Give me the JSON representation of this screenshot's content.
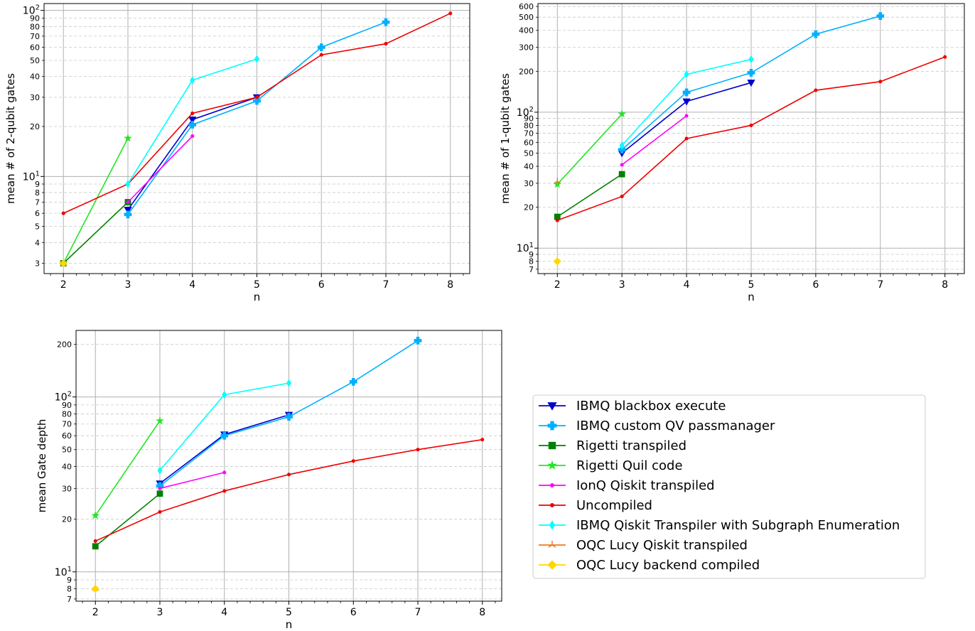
{
  "legend": {
    "entries": [
      {
        "name": "IBMQ blackbox execute",
        "color": "#0000cc",
        "marker": "tri-down"
      },
      {
        "name": "IBMQ custom QV passmanager",
        "color": "#00b0ff",
        "marker": "plus-filled"
      },
      {
        "name": "Rigetti transpiled",
        "color": "#008000",
        "marker": "square"
      },
      {
        "name": "Rigetti Quil code",
        "color": "#22e622",
        "marker": "star"
      },
      {
        "name": "IonQ Qiskit transpiled",
        "color": "#ff00ff",
        "marker": "dot"
      },
      {
        "name": "Uncompiled",
        "color": "#ee0000",
        "marker": "dot"
      },
      {
        "name": "IBMQ Qiskit Transpiler with Subgraph Enumeration",
        "color": "#00ffff",
        "marker": "thin-diamond"
      },
      {
        "name": "OQC Lucy Qiskit transpiled",
        "color": "#e87b1e",
        "marker": "tri-y"
      },
      {
        "name": "OQC Lucy backend compiled",
        "color": "#ffd700",
        "marker": "diamond"
      }
    ]
  },
  "chart_data": [
    {
      "type": "line",
      "xlabel": "n",
      "ylabel": "mean # of 2-qubit gates",
      "yscale": "log",
      "xlim": [
        1.7,
        8.3
      ],
      "ylim": [
        2.6,
        110
      ],
      "xticks": [
        2,
        3,
        4,
        5,
        6,
        7,
        8
      ],
      "grid": true,
      "series": [
        {
          "name": "IBMQ blackbox execute",
          "x": [
            3,
            4,
            5
          ],
          "y": [
            6.3,
            22,
            30
          ]
        },
        {
          "name": "IBMQ custom QV passmanager",
          "x": [
            3,
            4,
            5,
            6,
            7
          ],
          "y": [
            5.9,
            20.5,
            28.5,
            60,
            85
          ]
        },
        {
          "name": "Rigetti transpiled",
          "x": [
            2,
            3
          ],
          "y": [
            3.0,
            7.0
          ]
        },
        {
          "name": "Rigetti Quil code",
          "x": [
            2,
            3
          ],
          "y": [
            3.0,
            17
          ]
        },
        {
          "name": "IonQ Qiskit transpiled",
          "x": [
            3,
            4
          ],
          "y": [
            7.0,
            17.5
          ]
        },
        {
          "name": "Uncompiled",
          "x": [
            2,
            3,
            4,
            5,
            6,
            7,
            8
          ],
          "y": [
            6.0,
            9.0,
            24,
            30,
            54,
            63,
            96
          ]
        },
        {
          "name": "IBMQ Qiskit Transpiler with Subgraph Enumeration",
          "x": [
            3,
            4,
            5
          ],
          "y": [
            9.0,
            38,
            51
          ]
        },
        {
          "name": "OQC Lucy Qiskit transpiled",
          "x": [
            2
          ],
          "y": [
            3.0
          ]
        },
        {
          "name": "OQC Lucy backend compiled",
          "x": [
            2
          ],
          "y": [
            3.0
          ]
        }
      ]
    },
    {
      "type": "line",
      "xlabel": "n",
      "ylabel": "mean # of 1-qubit gates",
      "yscale": "log",
      "xlim": [
        1.7,
        8.3
      ],
      "ylim": [
        6.5,
        630
      ],
      "xticks": [
        2,
        3,
        4,
        5,
        6,
        7,
        8
      ],
      "grid": true,
      "series": [
        {
          "name": "IBMQ blackbox execute",
          "x": [
            3,
            4,
            5
          ],
          "y": [
            50,
            120,
            165
          ]
        },
        {
          "name": "IBMQ custom QV passmanager",
          "x": [
            3,
            4,
            5,
            6,
            7
          ],
          "y": [
            53,
            140,
            195,
            375,
            510
          ]
        },
        {
          "name": "Rigetti transpiled",
          "x": [
            2,
            3
          ],
          "y": [
            17,
            35
          ]
        },
        {
          "name": "Rigetti Quil code",
          "x": [
            2,
            3
          ],
          "y": [
            29.5,
            97
          ]
        },
        {
          "name": "IonQ Qiskit transpiled",
          "x": [
            3,
            4
          ],
          "y": [
            41,
            94
          ]
        },
        {
          "name": "Uncompiled",
          "x": [
            2,
            3,
            4,
            5,
            6,
            7,
            8
          ],
          "y": [
            16,
            24,
            64,
            80,
            145,
            168,
            255
          ]
        },
        {
          "name": "IBMQ Qiskit Transpiler with Subgraph Enumeration",
          "x": [
            3,
            4,
            5
          ],
          "y": [
            57,
            190,
            245
          ]
        },
        {
          "name": "OQC Lucy Qiskit transpiled",
          "x": [
            2
          ],
          "y": [
            31
          ]
        },
        {
          "name": "OQC Lucy backend compiled",
          "x": [
            2
          ],
          "y": [
            8
          ]
        }
      ]
    },
    {
      "type": "line",
      "xlabel": "n",
      "ylabel": "mean Gate depth",
      "yscale": "log",
      "xlim": [
        1.7,
        8.3
      ],
      "ylim": [
        6.8,
        240
      ],
      "xticks": [
        2,
        3,
        4,
        5,
        6,
        7,
        8
      ],
      "grid": true,
      "series": [
        {
          "name": "IBMQ blackbox execute",
          "x": [
            3,
            4,
            5
          ],
          "y": [
            32,
            61,
            79
          ]
        },
        {
          "name": "IBMQ custom QV passmanager",
          "x": [
            3,
            4,
            5,
            6,
            7
          ],
          "y": [
            31,
            60,
            77,
            122,
            210
          ]
        },
        {
          "name": "Rigetti transpiled",
          "x": [
            2,
            3
          ],
          "y": [
            14,
            28
          ]
        },
        {
          "name": "Rigetti Quil code",
          "x": [
            2,
            3
          ],
          "y": [
            21,
            73
          ]
        },
        {
          "name": "IonQ Qiskit transpiled",
          "x": [
            3,
            4
          ],
          "y": [
            30,
            37
          ]
        },
        {
          "name": "Uncompiled",
          "x": [
            2,
            3,
            4,
            5,
            6,
            7,
            8
          ],
          "y": [
            15,
            22,
            29,
            36,
            43,
            50,
            57
          ]
        },
        {
          "name": "IBMQ Qiskit Transpiler with Subgraph Enumeration",
          "x": [
            3,
            4,
            5
          ],
          "y": [
            38,
            103,
            120
          ]
        },
        {
          "name": "OQC Lucy Qiskit transpiled",
          "x": [
            2
          ],
          "y": [
            8
          ]
        },
        {
          "name": "OQC Lucy backend compiled",
          "x": [
            2
          ],
          "y": [
            8
          ]
        }
      ]
    }
  ]
}
